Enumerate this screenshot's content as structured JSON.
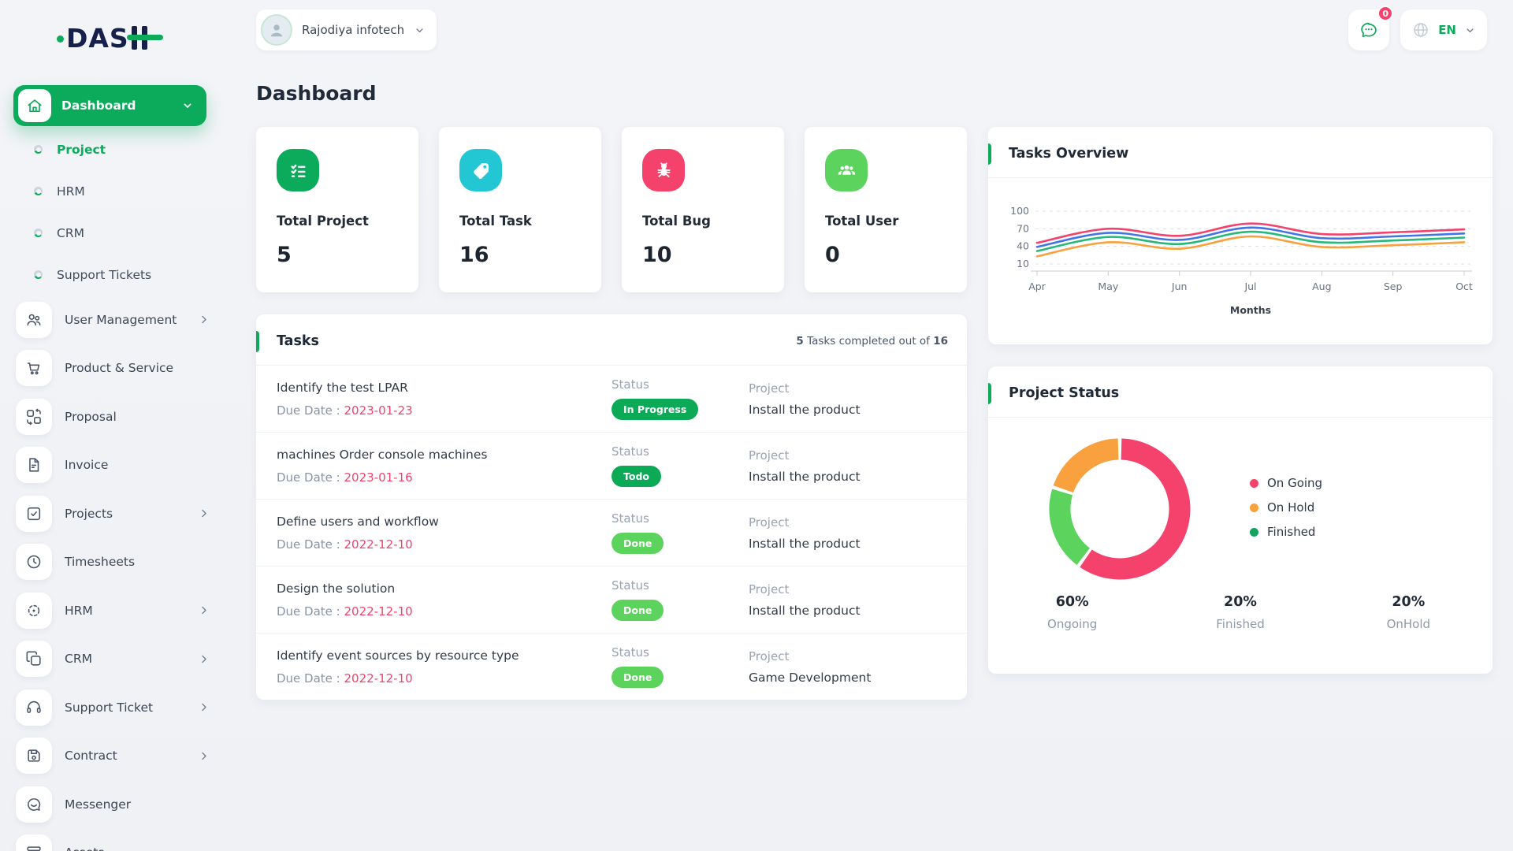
{
  "brand": {
    "logo_text": "DAS"
  },
  "topbar": {
    "workspace_name": "Rajodiya infotech",
    "messages_badge": "0",
    "language": "EN"
  },
  "sidebar": {
    "dashboard": {
      "label": "Dashboard",
      "icon": "home-icon"
    },
    "dashboard_sub_items": [
      {
        "label": "Project",
        "active": true
      },
      {
        "label": "HRM",
        "active": false
      },
      {
        "label": "CRM",
        "active": false
      },
      {
        "label": "Support Tickets",
        "active": false
      }
    ],
    "menu_items": [
      {
        "label": "User Management",
        "icon": "users-icon",
        "has_submenu": true
      },
      {
        "label": "Product & Service",
        "icon": "cart-icon",
        "has_submenu": false
      },
      {
        "label": "Proposal",
        "icon": "transform-icon",
        "has_submenu": false
      },
      {
        "label": "Invoice",
        "icon": "invoice-icon",
        "has_submenu": false
      },
      {
        "label": "Projects",
        "icon": "check-square-icon",
        "has_submenu": true
      },
      {
        "label": "Timesheets",
        "icon": "clock-icon",
        "has_submenu": false
      },
      {
        "label": "HRM",
        "icon": "focus-icon",
        "has_submenu": true
      },
      {
        "label": "CRM",
        "icon": "copy-icon",
        "has_submenu": true
      },
      {
        "label": "Support Ticket",
        "icon": "headset-icon",
        "has_submenu": true
      },
      {
        "label": "Contract",
        "icon": "floppy-icon",
        "has_submenu": true
      },
      {
        "label": "Messenger",
        "icon": "chat-icon",
        "has_submenu": false
      },
      {
        "label": "Assets",
        "icon": "archive-icon",
        "has_submenu": false
      }
    ]
  },
  "page": {
    "title": "Dashboard"
  },
  "stats": [
    {
      "label": "Total Project",
      "value": "5",
      "icon": "checklist-icon",
      "color": "#0CAB5C"
    },
    {
      "label": "Total Task",
      "value": "16",
      "icon": "tag-icon",
      "color": "#23C7D4"
    },
    {
      "label": "Total Bug",
      "value": "10",
      "icon": "bug-icon",
      "color": "#F4426D"
    },
    {
      "label": "Total User",
      "value": "0",
      "icon": "users-group-icon",
      "color": "#5BD35D"
    }
  ],
  "tasks": {
    "title": "Tasks",
    "summary": {
      "completed": "5",
      "text": " Tasks completed out of ",
      "total": "16"
    },
    "due_label": "Due Date : ",
    "status_label": "Status",
    "project_label": "Project",
    "rows": [
      {
        "name": "Identify the test LPAR",
        "due": "2023-01-23",
        "status": "In Progress",
        "status_type": "progress",
        "project": "Install the product"
      },
      {
        "name": "machines Order console machines",
        "due": "2023-01-16",
        "status": "Todo",
        "status_type": "todo",
        "project": "Install the product"
      },
      {
        "name": "Define users and workflow",
        "due": "2022-12-10",
        "status": "Done",
        "status_type": "done",
        "project": "Install the product"
      },
      {
        "name": "Design the solution",
        "due": "2022-12-10",
        "status": "Done",
        "status_type": "done",
        "project": "Install the product"
      },
      {
        "name": "Identify event sources by resource type",
        "due": "2022-12-10",
        "status": "Done",
        "status_type": "done",
        "project": "Game Development"
      }
    ]
  },
  "tasks_overview": {
    "title": "Tasks Overview"
  },
  "project_status": {
    "title": "Project Status",
    "legend": [
      {
        "label": "On Going",
        "color": "#F4426D"
      },
      {
        "label": "On Hold",
        "color": "#F8A13E"
      },
      {
        "label": "Finished",
        "color": "#12A45C"
      }
    ],
    "summary": [
      {
        "percent": "60%",
        "label": "Ongoing"
      },
      {
        "percent": "20%",
        "label": "Finished"
      },
      {
        "percent": "20%",
        "label": "OnHold"
      }
    ]
  },
  "chart_data": [
    {
      "type": "line",
      "title": "Tasks Overview",
      "x": [
        "Apr",
        "May",
        "Jun",
        "Jul",
        "Aug",
        "Sep",
        "Oct"
      ],
      "xlabel": "Months",
      "yticks": [
        10,
        40,
        70,
        100
      ],
      "ylim": [
        10,
        100
      ],
      "grid": true,
      "series": [
        {
          "name": "series-pink",
          "color": "#F4426D",
          "values": [
            46,
            70,
            58,
            79,
            61,
            64,
            69
          ]
        },
        {
          "name": "series-blue",
          "color": "#4273E8",
          "values": [
            39,
            63,
            51,
            72,
            54,
            57,
            62
          ]
        },
        {
          "name": "series-green",
          "color": "#27B97C",
          "values": [
            32,
            56,
            44,
            65,
            47,
            50,
            55
          ]
        },
        {
          "name": "series-orange",
          "color": "#F8A13E",
          "values": [
            23,
            47,
            36,
            57,
            39,
            42,
            47
          ]
        }
      ]
    },
    {
      "type": "pie",
      "title": "Project Status",
      "donut": true,
      "labels": [
        "On Going",
        "Finished",
        "On Hold"
      ],
      "values": [
        60,
        20,
        20
      ],
      "colors": [
        "#F4426D",
        "#5BD35D",
        "#F8A13E"
      ],
      "legend_position": "right"
    }
  ]
}
